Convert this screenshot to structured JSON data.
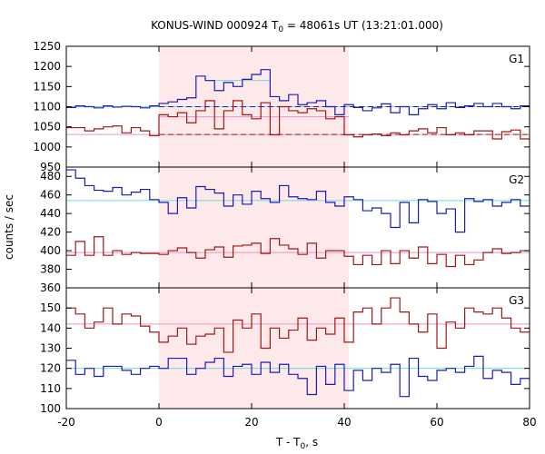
{
  "chart_data": {
    "type": "line",
    "style": "step",
    "title": "KONUS-WIND 000924 T",
    "title_sub": "0",
    "title_rest": " = 48061s UT (13:21:01.000)",
    "xlabel": "T - T",
    "xlabel_sub": "0",
    "xlabel_rest": ", s",
    "ylabel": "counts / sec",
    "xlim": [
      -20,
      80
    ],
    "xticks": [
      -20,
      0,
      20,
      40,
      60,
      80
    ],
    "highlight_interval": [
      0,
      41
    ],
    "colors": {
      "blue": "#1c1cb4",
      "red": "#a01818",
      "cyan": "#74d8e0",
      "pink": "#ee90c8",
      "band": "#fde8ea"
    },
    "panels": [
      {
        "label": "G1",
        "ylim": [
          950,
          1250
        ],
        "yticks": [
          950,
          1000,
          1050,
          1100,
          1150,
          1200,
          1250
        ],
        "bin_width": 2,
        "series": [
          {
            "name": "G1 count rate (blue)",
            "color": "blue",
            "x_start": -20,
            "values": [
              1098,
              1102,
              1100,
              1097,
              1102,
              1099,
              1101,
              1100,
              1097,
              1102,
              1108,
              1112,
              1118,
              1122,
              1176,
              1165,
              1140,
              1160,
              1150,
              1168,
              1180,
              1192,
              1125,
              1115,
              1130,
              1105,
              1110,
              1115,
              1100,
              1080,
              1105,
              1098,
              1090,
              1097,
              1107,
              1085,
              1100,
              1080,
              1095,
              1105,
              1095,
              1110,
              1098,
              1102,
              1108,
              1100,
              1108,
              1100,
              1095,
              1102
            ]
          },
          {
            "name": "G1 count rate (red)",
            "color": "red",
            "x_start": -20,
            "values": [
              1048,
              1048,
              1040,
              1045,
              1050,
              1052,
              1035,
              1048,
              1040,
              1028,
              1080,
              1075,
              1085,
              1060,
              1090,
              1115,
              1045,
              1090,
              1115,
              1080,
              1070,
              1110,
              1030,
              1100,
              1090,
              1085,
              1095,
              1090,
              1070,
              1075,
              1030,
              1025,
              1030,
              1032,
              1028,
              1035,
              1030,
              1040,
              1045,
              1035,
              1048,
              1030,
              1035,
              1030,
              1040,
              1040,
              1020,
              1038,
              1042,
              1020
            ]
          }
        ],
        "background_fits": [
          {
            "name": "fit blue",
            "color": "cyan",
            "value": 1100,
            "dashed_color": "blue",
            "dashed_from": 0
          },
          {
            "name": "fit red",
            "color": "pink",
            "value": 1031,
            "dashed_color": "red",
            "dashed_from": 0
          },
          {
            "name": "level red interval",
            "color": "pink",
            "value": 1075,
            "from": 0,
            "to": 41
          },
          {
            "name": "level blue interval",
            "color": "cyan",
            "value": 1165,
            "from": 10,
            "to": 24
          }
        ]
      },
      {
        "label": "G2",
        "ylim": [
          360,
          490
        ],
        "yticks": [
          360,
          380,
          400,
          420,
          440,
          460,
          480
        ],
        "bin_width": 2,
        "series": [
          {
            "name": "G2 count rate (blue)",
            "color": "blue",
            "x_start": -20,
            "values": [
              487,
              478,
              470,
              465,
              464,
              468,
              460,
              463,
              466,
              455,
              452,
              440,
              457,
              446,
              469,
              466,
              462,
              448,
              460,
              450,
              464,
              456,
              452,
              470,
              458,
              456,
              455,
              464,
              452,
              448,
              458,
              455,
              443,
              446,
              440,
              425,
              452,
              430,
              455,
              453,
              440,
              445,
              420,
              456,
              453,
              455,
              448,
              452,
              455,
              448
            ]
          },
          {
            "name": "G2 count rate (red)",
            "color": "red",
            "x_start": -20,
            "values": [
              395,
              410,
              395,
              415,
              395,
              400,
              396,
              398,
              397,
              397,
              396,
              400,
              403,
              398,
              392,
              401,
              404,
              393,
              405,
              406,
              408,
              397,
              413,
              406,
              402,
              396,
              408,
              392,
              400,
              400,
              394,
              385,
              395,
              385,
              400,
              386,
              400,
              392,
              404,
              386,
              396,
              383,
              395,
              385,
              390,
              398,
              402,
              397,
              398,
              400
            ]
          }
        ],
        "background_fits": [
          {
            "name": "fit blue",
            "color": "cyan",
            "value": 454
          },
          {
            "name": "fit red",
            "color": "pink",
            "value": 398
          }
        ]
      },
      {
        "label": "G3",
        "ylim": [
          100,
          160
        ],
        "yticks": [
          100,
          110,
          120,
          130,
          140,
          150
        ],
        "bin_width": 2,
        "series": [
          {
            "name": "G3 count rate (red)",
            "color": "red",
            "x_start": -20,
            "values": [
              150,
              147,
              140,
              143,
              150,
              142,
              147,
              146,
              141,
              138,
              133,
              136,
              140,
              132,
              136,
              137,
              140,
              128,
              144,
              140,
              147,
              130,
              140,
              135,
              139,
              145,
              134,
              140,
              137,
              145,
              133,
              148,
              150,
              142,
              150,
              155,
              148,
              142,
              138,
              147,
              130,
              143,
              140,
              150,
              148,
              147,
              150,
              145,
              140,
              138
            ]
          },
          {
            "name": "G3 count rate (blue)",
            "color": "blue",
            "x_start": -20,
            "values": [
              124,
              117,
              120,
              116,
              121,
              121,
              119,
              117,
              120,
              121,
              120,
              125,
              125,
              117,
              120,
              123,
              125,
              116,
              121,
              122,
              117,
              123,
              118,
              122,
              117,
              115,
              107,
              121,
              112,
              122,
              109,
              119,
              114,
              120,
              118,
              122,
              106,
              125,
              116,
              114,
              119,
              120,
              118,
              121,
              126,
              115,
              119,
              118,
              112,
              115
            ]
          }
        ],
        "background_fits": [
          {
            "name": "fit red",
            "color": "pink",
            "value": 142
          },
          {
            "name": "fit blue",
            "color": "cyan",
            "value": 120
          }
        ]
      }
    ]
  }
}
